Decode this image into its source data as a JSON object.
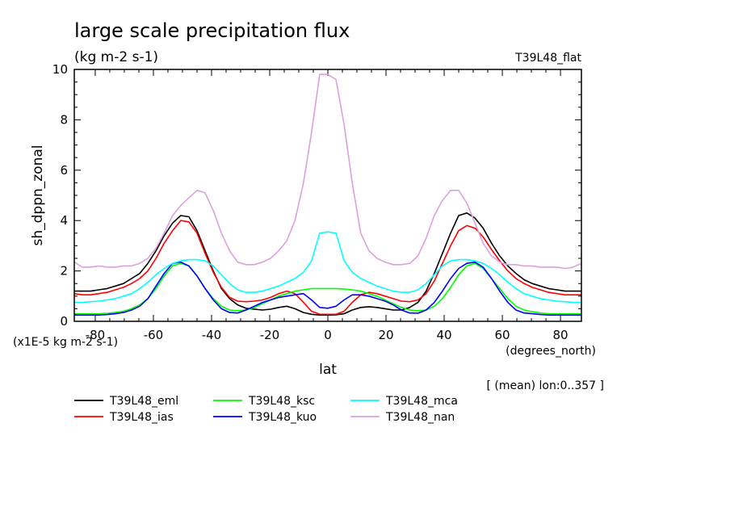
{
  "chart_data": {
    "type": "line",
    "title": "large scale precipitation flux",
    "units": "(kg m-2 s-1)",
    "experiment": "T39L48_flat",
    "ylabel": "sh_dppn_zonal",
    "xlabel": "lat",
    "x_units": "(degrees_north)",
    "y_scale_note": "(x1E-5 kg m-2 s-1)",
    "annotation": "[ (mean) lon:0..357 ]",
    "xlim": [
      -87.2,
      87.2
    ],
    "ylim": [
      0,
      10
    ],
    "xticks": [
      -80,
      -60,
      -40,
      -20,
      0,
      20,
      40,
      60,
      80
    ],
    "xtick_labels": [
      "-80",
      "-60",
      "-40",
      "-20",
      "0",
      "20",
      "40",
      "60",
      "80"
    ],
    "yticks": [
      0,
      2,
      4,
      6,
      8,
      10
    ],
    "ytick_labels": [
      "0",
      "2",
      "4",
      "6",
      "8",
      "10"
    ],
    "x": [
      -87.2,
      -84.4,
      -81.6,
      -78.8,
      -75.9,
      -73.1,
      -70.3,
      -67.5,
      -64.7,
      -61.9,
      -59.1,
      -56.3,
      -53.4,
      -50.6,
      -47.8,
      -45.0,
      -42.2,
      -39.4,
      -36.6,
      -33.8,
      -31.0,
      -28.2,
      -25.3,
      -22.5,
      -19.7,
      -16.9,
      -14.1,
      -11.3,
      -8.4,
      -5.6,
      -2.8,
      0.0,
      2.8,
      5.6,
      8.4,
      11.3,
      14.1,
      16.9,
      19.7,
      22.5,
      25.3,
      28.2,
      31.0,
      33.8,
      36.6,
      39.4,
      42.2,
      45.0,
      47.8,
      50.6,
      53.4,
      56.3,
      59.1,
      61.9,
      64.7,
      67.5,
      70.3,
      73.1,
      75.9,
      78.8,
      81.6,
      84.4,
      87.2
    ],
    "series": [
      {
        "name": "T39L48_eml",
        "color": "#000000",
        "values": [
          1.2,
          1.2,
          1.2,
          1.25,
          1.3,
          1.4,
          1.5,
          1.7,
          1.9,
          2.3,
          2.8,
          3.4,
          3.9,
          4.2,
          4.15,
          3.6,
          2.8,
          2.0,
          1.3,
          0.9,
          0.65,
          0.52,
          0.48,
          0.45,
          0.48,
          0.55,
          0.6,
          0.5,
          0.35,
          0.28,
          0.25,
          0.25,
          0.26,
          0.3,
          0.45,
          0.55,
          0.58,
          0.55,
          0.5,
          0.45,
          0.45,
          0.55,
          0.75,
          1.2,
          1.9,
          2.7,
          3.5,
          4.2,
          4.3,
          4.1,
          3.7,
          3.1,
          2.6,
          2.2,
          1.9,
          1.65,
          1.5,
          1.4,
          1.3,
          1.25,
          1.2,
          1.2,
          1.2
        ]
      },
      {
        "name": "T39L48_ias",
        "color": "#ff0000",
        "values": [
          1.1,
          1.05,
          1.05,
          1.1,
          1.15,
          1.25,
          1.35,
          1.5,
          1.7,
          2.0,
          2.5,
          3.1,
          3.6,
          4.0,
          3.95,
          3.5,
          2.7,
          1.95,
          1.35,
          0.95,
          0.8,
          0.78,
          0.8,
          0.85,
          0.95,
          1.1,
          1.2,
          1.1,
          0.75,
          0.4,
          0.28,
          0.28,
          0.28,
          0.4,
          0.75,
          1.05,
          1.15,
          1.1,
          1.0,
          0.9,
          0.8,
          0.78,
          0.85,
          1.1,
          1.6,
          2.3,
          3.0,
          3.6,
          3.8,
          3.7,
          3.35,
          2.85,
          2.4,
          2.0,
          1.7,
          1.5,
          1.35,
          1.25,
          1.15,
          1.1,
          1.05,
          1.05,
          1.05
        ]
      },
      {
        "name": "T39L48_ksc",
        "color": "#00ff00",
        "values": [
          0.3,
          0.3,
          0.3,
          0.3,
          0.32,
          0.35,
          0.4,
          0.5,
          0.65,
          0.9,
          1.3,
          1.8,
          2.2,
          2.3,
          2.2,
          1.8,
          1.3,
          0.9,
          0.6,
          0.45,
          0.42,
          0.45,
          0.55,
          0.7,
          0.85,
          1.0,
          1.1,
          1.2,
          1.25,
          1.3,
          1.3,
          1.3,
          1.3,
          1.28,
          1.25,
          1.2,
          1.1,
          1.0,
          0.85,
          0.7,
          0.55,
          0.45,
          0.42,
          0.45,
          0.6,
          0.9,
          1.35,
          1.85,
          2.2,
          2.3,
          2.1,
          1.7,
          1.3,
          0.9,
          0.6,
          0.45,
          0.38,
          0.33,
          0.3,
          0.3,
          0.3,
          0.3,
          0.3
        ]
      },
      {
        "name": "T39L48_kuo",
        "color": "#0000ff",
        "values": [
          0.25,
          0.25,
          0.25,
          0.25,
          0.27,
          0.3,
          0.35,
          0.45,
          0.6,
          0.9,
          1.4,
          1.9,
          2.3,
          2.35,
          2.2,
          1.8,
          1.3,
          0.85,
          0.5,
          0.35,
          0.33,
          0.45,
          0.6,
          0.75,
          0.85,
          0.95,
          1.0,
          1.05,
          1.1,
          0.85,
          0.55,
          0.52,
          0.6,
          0.85,
          1.05,
          1.05,
          1.0,
          0.9,
          0.8,
          0.65,
          0.45,
          0.33,
          0.32,
          0.45,
          0.75,
          1.2,
          1.7,
          2.1,
          2.3,
          2.35,
          2.15,
          1.7,
          1.2,
          0.75,
          0.45,
          0.33,
          0.3,
          0.27,
          0.25,
          0.25,
          0.25,
          0.25,
          0.25
        ]
      },
      {
        "name": "T39L48_mca",
        "color": "#00ffff",
        "values": [
          0.75,
          0.75,
          0.78,
          0.8,
          0.85,
          0.9,
          1.0,
          1.1,
          1.3,
          1.55,
          1.85,
          2.1,
          2.3,
          2.4,
          2.45,
          2.45,
          2.4,
          2.2,
          1.85,
          1.5,
          1.25,
          1.15,
          1.15,
          1.2,
          1.3,
          1.4,
          1.55,
          1.7,
          1.95,
          2.4,
          3.5,
          3.55,
          3.5,
          2.4,
          1.95,
          1.7,
          1.55,
          1.4,
          1.3,
          1.2,
          1.15,
          1.15,
          1.25,
          1.5,
          1.85,
          2.2,
          2.4,
          2.45,
          2.45,
          2.4,
          2.3,
          2.1,
          1.85,
          1.55,
          1.3,
          1.1,
          1.0,
          0.9,
          0.85,
          0.8,
          0.78,
          0.75,
          0.75
        ]
      },
      {
        "name": "T39L48_nan",
        "color": "#dda0dd",
        "values": [
          2.35,
          2.15,
          2.15,
          2.2,
          2.15,
          2.15,
          2.2,
          2.2,
          2.3,
          2.5,
          2.9,
          3.5,
          4.2,
          4.6,
          4.9,
          5.2,
          5.1,
          4.4,
          3.5,
          2.8,
          2.35,
          2.25,
          2.25,
          2.35,
          2.5,
          2.8,
          3.2,
          4.0,
          5.5,
          7.5,
          9.8,
          9.8,
          9.6,
          7.8,
          5.5,
          3.5,
          2.8,
          2.5,
          2.35,
          2.25,
          2.25,
          2.3,
          2.6,
          3.3,
          4.2,
          4.8,
          5.2,
          5.2,
          4.7,
          3.9,
          3.1,
          2.6,
          2.35,
          2.25,
          2.25,
          2.2,
          2.2,
          2.15,
          2.15,
          2.15,
          2.1,
          2.15,
          2.3
        ]
      }
    ],
    "legend_position": "below-plot"
  }
}
